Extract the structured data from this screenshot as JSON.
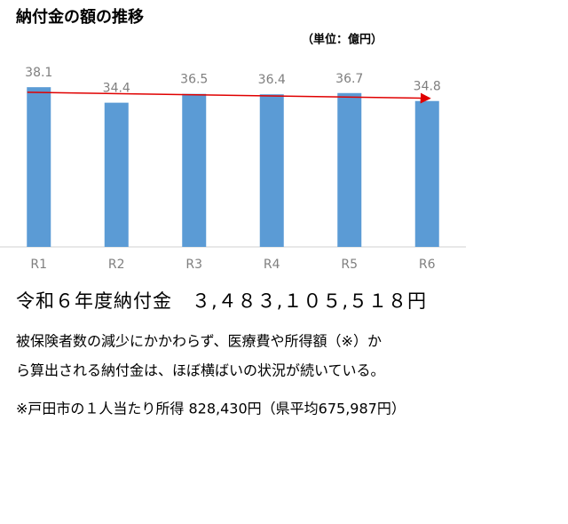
{
  "chart_data": {
    "type": "bar",
    "title": "納付金の額の推移",
    "unit_label": "（単位：億円）",
    "categories": [
      "R1",
      "R2",
      "R3",
      "R4",
      "R5",
      "R6"
    ],
    "values": [
      38.1,
      34.4,
      36.5,
      36.4,
      36.7,
      34.8
    ],
    "color": "#5b9bd5",
    "trendline": true,
    "trendline_color": "#e00000"
  },
  "summary": "令和６年度納付金　３,４８３,１０５,５１８円",
  "description": [
    "被保険者数の減少にかかわらず、医療費や所得額（※）か",
    "ら算出される納付金は、ほぼ横ばいの状況が続いている。"
  ],
  "note": "※戸田市の１人当たり所得 828,430円（県平均675,987円）"
}
